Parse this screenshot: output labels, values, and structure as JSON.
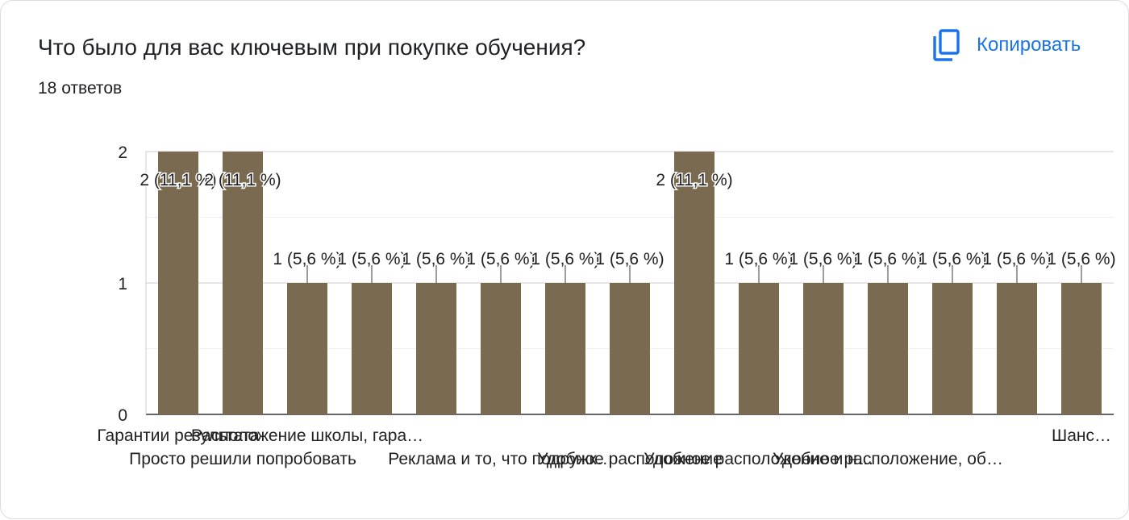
{
  "header": {
    "title": "Что было для вас ключевым при покупке обучения?",
    "responses": "18 ответов",
    "copy_label": "Копировать",
    "copy_icon": "copy-icon",
    "accent_color": "#1a73e8"
  },
  "chart_data": {
    "type": "bar",
    "bar_color": "#7a6a4f",
    "categories": [
      "Гарантии результата",
      "Просто решили попробовать",
      "Расположение школы, гара…",
      "",
      "",
      "Реклама и то, что подружк…",
      "",
      "Удобное расположение",
      "",
      "Удобное расположение и н…",
      "",
      "Удобное расположение, об…",
      "",
      "",
      "Шанс…"
    ],
    "values": [
      2,
      2,
      1,
      1,
      1,
      1,
      1,
      1,
      2,
      1,
      1,
      1,
      1,
      1,
      1
    ],
    "data_labels": [
      "2 (11,1 %)",
      "2 (11,1 %)",
      "1 (5,6 %)",
      "1 (5,6 %)",
      "1 (5,6 %)",
      "1 (5,6 %)",
      "1 (5,6 %)",
      "1 (5,6 %)",
      "2 (11,1 %)",
      "1 (5,6 %)",
      "1 (5,6 %)",
      "1 (5,6 %)",
      "1 (5,6 %)",
      "1 (5,6 %)",
      "1 (5,6 %)"
    ],
    "y_ticks": [
      "0",
      "1",
      "2"
    ],
    "ylim": [
      0,
      2
    ],
    "grid": true,
    "legend": "none"
  }
}
